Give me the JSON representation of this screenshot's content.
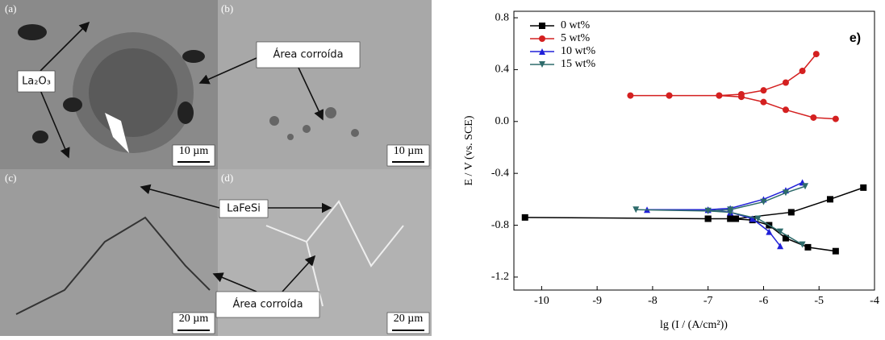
{
  "micrographs": {
    "panels": [
      "(a)",
      "(b)",
      "(c)",
      "(d)"
    ],
    "scale_bars": [
      "10 µm",
      "10 µm",
      "20 µm",
      "20 µm"
    ],
    "annotations": [
      "La₂O₃",
      "Área corroída",
      "LaFeSi",
      "Área corroída"
    ]
  },
  "chart_data": {
    "type": "line",
    "annotation": "e)",
    "x_label": "lg (I / (A/cm²))",
    "y_label": "E / V (vs. SCE)",
    "xlim": [
      -10.5,
      -4
    ],
    "xticks": [
      -10,
      -9,
      -8,
      -7,
      -6,
      -5,
      -4
    ],
    "ylim": [
      -1.3,
      0.85
    ],
    "yticks": [
      -1.2,
      -0.8,
      -0.4,
      {
        "value": 0,
        "label": "0.0"
      },
      0.4,
      0.8
    ],
    "legend": "upper left",
    "series": [
      {
        "name": "0 wt%",
        "color": "#000000",
        "marker": "square",
        "x": [
          -4.7,
          -5.2,
          -5.6,
          -5.9,
          -6.2,
          -6.6,
          -7.0,
          -10.3,
          -7.0,
          -6.5,
          -5.5,
          -4.8,
          -4.2
        ],
        "values": [
          -1.0,
          -0.97,
          -0.9,
          -0.8,
          -0.76,
          -0.75,
          -0.75,
          -0.74,
          -0.75,
          -0.75,
          -0.7,
          -0.6,
          -0.51
        ]
      },
      {
        "name": "5 wt%",
        "color": "#d42020",
        "marker": "circle",
        "x": [
          -4.7,
          -5.1,
          -5.6,
          -6.0,
          -6.4,
          -6.8,
          -7.7,
          -8.4,
          -7.7,
          -6.8,
          -6.4,
          -6.0,
          -5.6,
          -5.3,
          -5.05
        ],
        "values": [
          0.02,
          0.03,
          0.09,
          0.15,
          0.19,
          0.2,
          0.2,
          0.2,
          0.2,
          0.2,
          0.21,
          0.24,
          0.3,
          0.39,
          0.52
        ]
      },
      {
        "name": "10 wt%",
        "color": "#2020d8",
        "marker": "triangle",
        "x": [
          -5.7,
          -5.9,
          -6.2,
          -6.6,
          -7.0,
          -8.1,
          -7.0,
          -6.6,
          -6.0,
          -5.6,
          -5.3
        ],
        "values": [
          -0.96,
          -0.85,
          -0.75,
          -0.7,
          -0.68,
          -0.68,
          -0.68,
          -0.67,
          -0.6,
          -0.53,
          -0.47
        ]
      },
      {
        "name": "15 wt%",
        "color": "#2e6b6b",
        "marker": "triangle-down",
        "x": [
          -5.3,
          -5.7,
          -6.1,
          -6.6,
          -7.0,
          -8.3,
          -7.0,
          -6.6,
          -6.0,
          -5.6,
          -5.25
        ],
        "values": [
          -0.95,
          -0.85,
          -0.75,
          -0.7,
          -0.69,
          -0.68,
          -0.69,
          -0.68,
          -0.62,
          -0.55,
          -0.5
        ]
      }
    ]
  }
}
